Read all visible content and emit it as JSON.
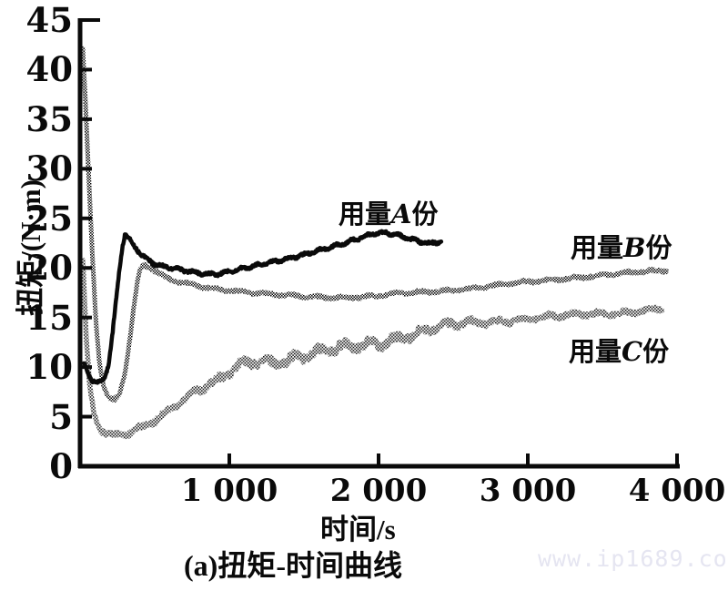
{
  "colors": {
    "ink": "#0a0a0a",
    "watermark": "#e5e5f1",
    "background": "#ffffff"
  },
  "labels": {
    "caption": "(a)扭矩-时间曲线",
    "watermark": "www.ip1689.com",
    "curve_a": {
      "prefix": "用量",
      "letter": "A",
      "suffix": "份"
    },
    "curve_b": {
      "prefix": "用量",
      "letter": "B",
      "suffix": "份"
    },
    "curve_c": {
      "prefix": "用量",
      "letter": "C",
      "suffix": "份"
    }
  },
  "chart_data": {
    "type": "line",
    "title": "(a)扭矩-时间曲线",
    "xlabel": "时间/s",
    "ylabel": "扭矩/(N·m)",
    "xlim": [
      0,
      4000
    ],
    "ylim": [
      0,
      45
    ],
    "grid": false,
    "legend_position": "inline-annotations",
    "x_ticks": [
      1000,
      2000,
      3000,
      4000
    ],
    "x_tick_labels": [
      "1 000",
      "2 000",
      "3 000",
      "4 000"
    ],
    "y_ticks": [
      0,
      5,
      10,
      15,
      20,
      25,
      30,
      35,
      40,
      45
    ],
    "series": [
      {
        "name": "用量C份",
        "style": "dotted-light",
        "points": [
          [
            18,
            21.0
          ],
          [
            40,
            13.0
          ],
          [
            65,
            8.0
          ],
          [
            95,
            5.0
          ],
          [
            130,
            3.8
          ],
          [
            170,
            3.3
          ],
          [
            220,
            3.05
          ],
          [
            280,
            3.1
          ],
          [
            340,
            3.4
          ],
          [
            400,
            3.8
          ],
          [
            470,
            4.4
          ],
          [
            540,
            5.1
          ],
          [
            610,
            5.9
          ],
          [
            680,
            6.7
          ],
          [
            750,
            7.4
          ],
          [
            820,
            7.9
          ],
          [
            890,
            8.3
          ],
          [
            960,
            8.9
          ],
          [
            1030,
            9.7
          ],
          [
            1100,
            10.3
          ],
          [
            1180,
            10.6
          ],
          [
            1280,
            10.6
          ],
          [
            1380,
            10.8
          ],
          [
            1480,
            11.2
          ],
          [
            1580,
            11.4
          ],
          [
            1700,
            11.7
          ],
          [
            1850,
            12.0
          ],
          [
            2000,
            12.5
          ],
          [
            2150,
            13.1
          ],
          [
            2300,
            13.6
          ],
          [
            2450,
            14.1
          ],
          [
            2600,
            14.4
          ],
          [
            2750,
            14.6
          ],
          [
            2900,
            14.8
          ],
          [
            3050,
            15.0
          ],
          [
            3200,
            15.1
          ],
          [
            3350,
            15.3
          ],
          [
            3500,
            15.4
          ],
          [
            3700,
            15.6
          ],
          [
            3900,
            15.9
          ]
        ]
      },
      {
        "name": "用量B份",
        "style": "dotted",
        "points": [
          [
            18,
            42.0
          ],
          [
            35,
            37.0
          ],
          [
            55,
            30.0
          ],
          [
            80,
            22.0
          ],
          [
            105,
            15.0
          ],
          [
            130,
            10.5
          ],
          [
            160,
            8.0
          ],
          [
            195,
            6.9
          ],
          [
            230,
            6.7
          ],
          [
            265,
            7.4
          ],
          [
            300,
            9.5
          ],
          [
            330,
            12.5
          ],
          [
            360,
            16.0
          ],
          [
            385,
            18.6
          ],
          [
            405,
            19.9
          ],
          [
            430,
            20.3
          ],
          [
            460,
            20.1
          ],
          [
            510,
            19.6
          ],
          [
            570,
            19.0
          ],
          [
            650,
            18.6
          ],
          [
            750,
            18.3
          ],
          [
            870,
            18.0
          ],
          [
            1000,
            17.8
          ],
          [
            1150,
            17.5
          ],
          [
            1300,
            17.3
          ],
          [
            1450,
            17.15
          ],
          [
            1600,
            17.05
          ],
          [
            1750,
            17.05
          ],
          [
            1900,
            17.1
          ],
          [
            2050,
            17.25
          ],
          [
            2200,
            17.45
          ],
          [
            2350,
            17.6
          ],
          [
            2500,
            17.8
          ],
          [
            2650,
            18.0
          ],
          [
            2800,
            18.25
          ],
          [
            2950,
            18.5
          ],
          [
            3100,
            18.7
          ],
          [
            3250,
            18.95
          ],
          [
            3400,
            19.15
          ],
          [
            3550,
            19.35
          ],
          [
            3700,
            19.5
          ],
          [
            3820,
            19.65
          ],
          [
            3930,
            19.8
          ]
        ]
      },
      {
        "name": "用量A份",
        "style": "solid",
        "points": [
          [
            25,
            10.4
          ],
          [
            50,
            9.4
          ],
          [
            80,
            8.7
          ],
          [
            110,
            8.4
          ],
          [
            140,
            8.4
          ],
          [
            165,
            8.9
          ],
          [
            190,
            10.2
          ],
          [
            215,
            13.0
          ],
          [
            240,
            16.5
          ],
          [
            265,
            20.0
          ],
          [
            285,
            22.3
          ],
          [
            300,
            23.4
          ],
          [
            315,
            23.3
          ],
          [
            335,
            22.8
          ],
          [
            365,
            22.2
          ],
          [
            400,
            21.6
          ],
          [
            450,
            20.9
          ],
          [
            500,
            20.4
          ],
          [
            560,
            20.1
          ],
          [
            620,
            19.9
          ],
          [
            700,
            19.7
          ],
          [
            800,
            19.5
          ],
          [
            900,
            19.4
          ],
          [
            1000,
            19.6
          ],
          [
            1100,
            19.9
          ],
          [
            1200,
            20.3
          ],
          [
            1300,
            20.7
          ],
          [
            1400,
            21.0
          ],
          [
            1500,
            21.3
          ],
          [
            1600,
            21.7
          ],
          [
            1700,
            22.2
          ],
          [
            1800,
            22.7
          ],
          [
            1880,
            23.1
          ],
          [
            1960,
            23.4
          ],
          [
            2040,
            23.5
          ],
          [
            2120,
            23.3
          ],
          [
            2200,
            23.0
          ],
          [
            2280,
            22.7
          ],
          [
            2350,
            22.5
          ],
          [
            2420,
            22.7
          ]
        ]
      }
    ]
  }
}
